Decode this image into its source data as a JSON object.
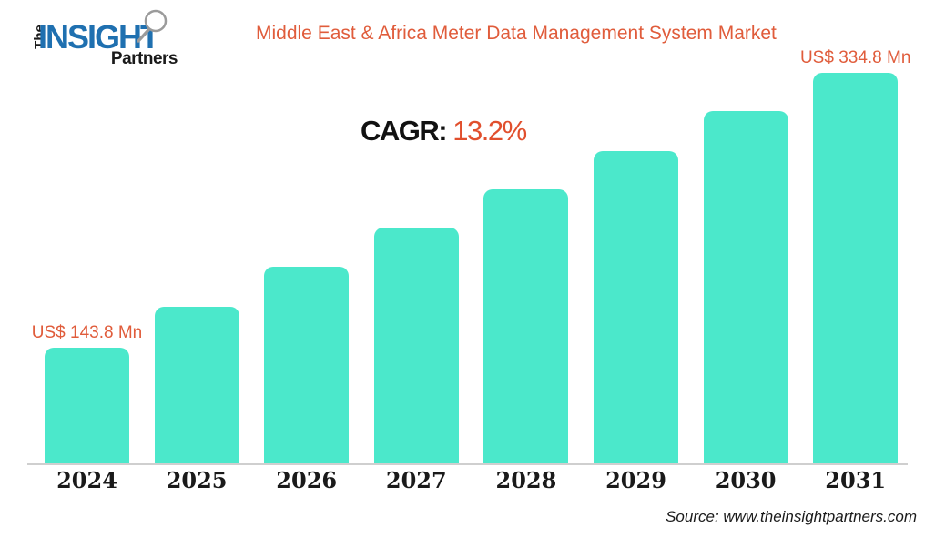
{
  "header": {
    "logo": {
      "the": "The",
      "insight": "INSIGHT",
      "partners": "Partners"
    },
    "title": "Middle East & Africa Meter Data Management System Market"
  },
  "cagr": {
    "label": "CAGR:",
    "value": "13.2%"
  },
  "source": "Source: www.theinsightpartners.com",
  "colors": {
    "bar": "#4be8cb",
    "title_orange": "#e05c3b",
    "cagr_orange": "#e14f2d",
    "logo_blue": "#1f70b0",
    "axis_line": "#cfcfcf",
    "text_black": "#1a1a1a"
  },
  "chart_data": {
    "type": "bar",
    "title": "Middle East & Africa Meter Data Management System Market",
    "categories": [
      "2024",
      "2025",
      "2026",
      "2027",
      "2028",
      "2029",
      "2030",
      "2031"
    ],
    "values": [
      143.8,
      172.3,
      200.2,
      227.4,
      253.9,
      280.4,
      308.2,
      334.8
    ],
    "unit": "US$ Mn",
    "cagr_percent": 13.2,
    "data_labels": {
      "first": "US$ 143.8 Mn",
      "last": "US$ 334.8 Mn"
    },
    "xlabel": "",
    "ylabel": "",
    "ylim": [
      62.8,
      334.8
    ],
    "grid": false,
    "legend": false
  }
}
